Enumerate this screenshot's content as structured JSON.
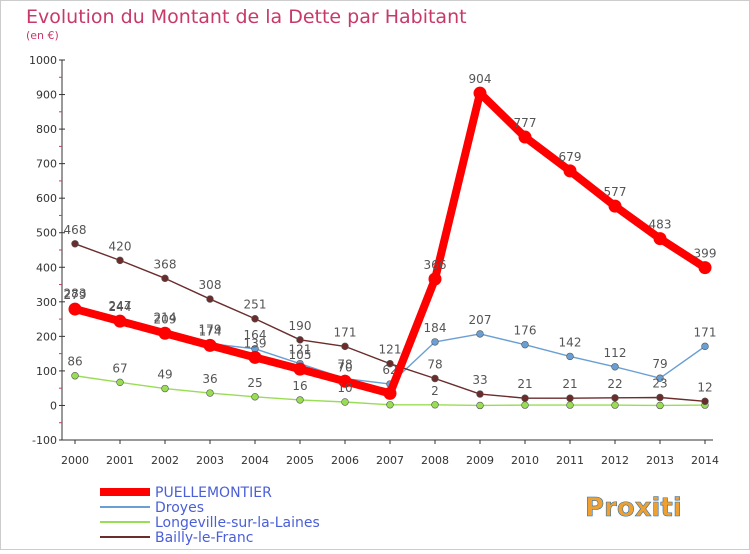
{
  "chart_data": {
    "type": "line",
    "title": "Evolution du Montant de la Dette par Habitant",
    "subtitle": "(en €)",
    "xlabel": "",
    "ylabel": "",
    "ylim": [
      -100,
      1000
    ],
    "yticks": [
      -100,
      0,
      100,
      200,
      300,
      400,
      500,
      600,
      700,
      800,
      900,
      1000
    ],
    "grid": false,
    "legend_position": "bottom-left",
    "x": [
      "2000",
      "2001",
      "2002",
      "2003",
      "2004",
      "2005",
      "2006",
      "2007",
      "2008",
      "2009",
      "2010",
      "2011",
      "2012",
      "2013",
      "2014"
    ],
    "series": [
      {
        "name": "PUELLEMONTIER",
        "color": "#ff0000",
        "emphasis": true,
        "values": [
          279,
          244,
          209,
          174,
          139,
          105,
          70,
          35,
          366,
          904,
          777,
          679,
          577,
          483,
          399
        ]
      },
      {
        "name": "Droyes",
        "color": "#6a9fd4",
        "values": [
          283,
          247,
          214,
          179,
          164,
          121,
          78,
          62,
          184,
          207,
          176,
          142,
          112,
          79,
          171
        ]
      },
      {
        "name": "Longeville-sur-la-Laines",
        "color": "#99dd55",
        "values": [
          86,
          67,
          49,
          36,
          25,
          16,
          10,
          2,
          2,
          0,
          1,
          1,
          1,
          0,
          1
        ]
      },
      {
        "name": "Bailly-le-Franc",
        "color": "#6b2c2c",
        "values": [
          468,
          420,
          368,
          308,
          251,
          190,
          171,
          121,
          78,
          33,
          21,
          21,
          22,
          23,
          12
        ]
      }
    ],
    "point_labels": [
      {
        "series": 0,
        "labels": [
          "279",
          "244",
          "209",
          "174",
          "139",
          "105",
          "70",
          "",
          "366",
          "904",
          "777",
          "679",
          "577",
          "483",
          "399"
        ]
      },
      {
        "series": 1,
        "labels": [
          "283",
          "247",
          "214",
          "179",
          "164",
          "121",
          "78",
          "62",
          "184",
          "207",
          "176",
          "142",
          "112",
          "79",
          "171"
        ]
      },
      {
        "series": 2,
        "labels": [
          "86",
          "67",
          "49",
          "36",
          "25",
          "16",
          "10",
          "",
          "2",
          "",
          "",
          "",
          "",
          "",
          ""
        ]
      },
      {
        "series": 3,
        "labels": [
          "468",
          "420",
          "368",
          "308",
          "251",
          "190",
          "171",
          "121",
          "78",
          "33",
          "21",
          "21",
          "22",
          "23",
          "12"
        ]
      }
    ]
  },
  "watermark": "Proxiti"
}
